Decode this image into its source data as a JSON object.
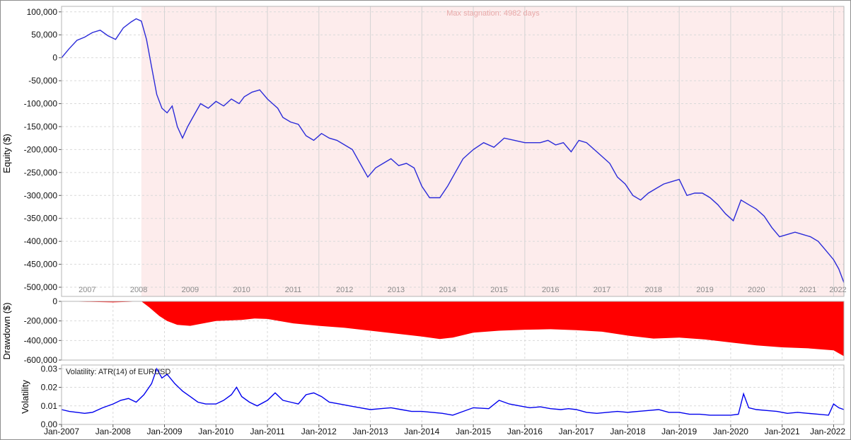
{
  "colors": {
    "equity_line": "#2b2bd9",
    "volatility_line": "#0000ee",
    "drawdown_fill": "#ff0000",
    "stagnation_shade": "#fdecec",
    "stagnation_text": "#e8a8a8",
    "year_label": "#8a8a8a",
    "grid": "#d9d9d9",
    "frame": "#b5b5b5"
  },
  "chart_data": [
    {
      "type": "line",
      "ylabel": "Equity ($)",
      "ylim": [
        -520000,
        112000
      ],
      "yticks": [
        100000,
        50000,
        0,
        -50000,
        -100000,
        -150000,
        -200000,
        -250000,
        -300000,
        -350000,
        -400000,
        -450000,
        -500000
      ],
      "ytick_labels": [
        "100,000",
        "50,000",
        "0",
        "-50,000",
        "-100,000",
        "-150,000",
        "-200,000",
        "-250,000",
        "-300,000",
        "-350,000",
        "-400,000",
        "-450,000",
        "-500,000"
      ],
      "year_labels": [
        "2007",
        "2008",
        "2009",
        "2010",
        "2011",
        "2012",
        "2013",
        "2014",
        "2015",
        "2016",
        "2017",
        "2018",
        "2019",
        "2020",
        "2021",
        "2022"
      ],
      "annotation": "Max stagnation: 4982 days",
      "stagnation_start": 2008.55,
      "x": [
        2007.0,
        2007.15,
        2007.3,
        2007.45,
        2007.6,
        2007.75,
        2007.9,
        2008.05,
        2008.2,
        2008.35,
        2008.45,
        2008.55,
        2008.65,
        2008.75,
        2008.85,
        2008.95,
        2009.05,
        2009.15,
        2009.25,
        2009.35,
        2009.45,
        2009.55,
        2009.7,
        2009.85,
        2010.0,
        2010.15,
        2010.3,
        2010.45,
        2010.55,
        2010.7,
        2010.85,
        2011.0,
        2011.1,
        2011.2,
        2011.3,
        2011.45,
        2011.6,
        2011.75,
        2011.9,
        2012.05,
        2012.2,
        2012.35,
        2012.5,
        2012.65,
        2012.8,
        2012.95,
        2013.1,
        2013.25,
        2013.4,
        2013.55,
        2013.7,
        2013.85,
        2014.0,
        2014.15,
        2014.35,
        2014.5,
        2014.65,
        2014.8,
        2015.0,
        2015.2,
        2015.4,
        2015.6,
        2015.8,
        2016.0,
        2016.15,
        2016.3,
        2016.45,
        2016.6,
        2016.75,
        2016.9,
        2017.05,
        2017.2,
        2017.35,
        2017.5,
        2017.65,
        2017.8,
        2017.95,
        2018.1,
        2018.25,
        2018.4,
        2018.55,
        2018.7,
        2018.85,
        2019.0,
        2019.15,
        2019.3,
        2019.45,
        2019.6,
        2019.75,
        2019.9,
        2020.05,
        2020.2,
        2020.35,
        2020.5,
        2020.65,
        2020.8,
        2020.95,
        2021.1,
        2021.25,
        2021.4,
        2021.55,
        2021.7,
        2021.85,
        2022.0,
        2022.1,
        2022.2
      ],
      "values": [
        0,
        20000,
        38000,
        45000,
        55000,
        60000,
        48000,
        40000,
        65000,
        78000,
        85000,
        80000,
        40000,
        -20000,
        -80000,
        -110000,
        -120000,
        -105000,
        -150000,
        -175000,
        -150000,
        -130000,
        -100000,
        -110000,
        -95000,
        -105000,
        -90000,
        -100000,
        -85000,
        -75000,
        -70000,
        -90000,
        -100000,
        -110000,
        -130000,
        -140000,
        -145000,
        -170000,
        -180000,
        -165000,
        -175000,
        -180000,
        -190000,
        -200000,
        -230000,
        -260000,
        -240000,
        -230000,
        -220000,
        -235000,
        -230000,
        -240000,
        -280000,
        -305000,
        -305000,
        -280000,
        -250000,
        -220000,
        -200000,
        -185000,
        -195000,
        -175000,
        -180000,
        -185000,
        -185000,
        -185000,
        -180000,
        -190000,
        -185000,
        -205000,
        -180000,
        -185000,
        -200000,
        -215000,
        -230000,
        -260000,
        -275000,
        -300000,
        -310000,
        -295000,
        -285000,
        -275000,
        -270000,
        -265000,
        -300000,
        -295000,
        -295000,
        -305000,
        -320000,
        -340000,
        -355000,
        -310000,
        -320000,
        -330000,
        -345000,
        -370000,
        -390000,
        -385000,
        -380000,
        -385000,
        -390000,
        -400000,
        -420000,
        -440000,
        -460000,
        -490000
      ]
    },
    {
      "type": "area",
      "ylabel": "Drawdown ($)",
      "ylim": [
        -600000,
        0
      ],
      "yticks": [
        0,
        -200000,
        -400000,
        -600000
      ],
      "ytick_labels": [
        "0",
        "-200,000",
        "-400,000",
        "-600,000"
      ],
      "x": [
        2007.0,
        2007.5,
        2008.0,
        2008.3,
        2008.55,
        2008.7,
        2008.9,
        2009.05,
        2009.25,
        2009.5,
        2010.0,
        2010.5,
        2010.75,
        2011.0,
        2011.5,
        2012.0,
        2012.5,
        2013.0,
        2013.5,
        2014.0,
        2014.35,
        2014.6,
        2015.0,
        2015.5,
        2016.0,
        2016.5,
        2017.0,
        2017.5,
        2018.0,
        2018.5,
        2019.0,
        2019.5,
        2020.0,
        2020.5,
        2021.0,
        2021.5,
        2022.0,
        2022.2
      ],
      "values": [
        0,
        -5000,
        -10000,
        -5000,
        0,
        -60000,
        -150000,
        -200000,
        -240000,
        -250000,
        -200000,
        -190000,
        -175000,
        -180000,
        -225000,
        -250000,
        -270000,
        -300000,
        -330000,
        -360000,
        -385000,
        -370000,
        -320000,
        -300000,
        -290000,
        -285000,
        -295000,
        -310000,
        -350000,
        -380000,
        -370000,
        -390000,
        -420000,
        -450000,
        -470000,
        -480000,
        -500000,
        -560000
      ]
    },
    {
      "type": "line",
      "title": "Volatility: ATR(14) of EURUSD",
      "ylabel": "Volatility",
      "ylim": [
        0,
        0.032
      ],
      "yticks": [
        0.0,
        0.01,
        0.02,
        0.03
      ],
      "ytick_labels": [
        "0.00",
        "0.01",
        "0.02",
        "0.03"
      ],
      "xtick_labels": [
        "Jan-2007",
        "Jan-2008",
        "Jan-2009",
        "Jan-2010",
        "Jan-2011",
        "Jan-2012",
        "Jan-2013",
        "Jan-2014",
        "Jan-2015",
        "Jan-2016",
        "Jan-2017",
        "Jan-2018",
        "Jan-2019",
        "Jan-2020",
        "Jan-2021",
        "Jan-2022"
      ],
      "x": [
        2007.0,
        2007.15,
        2007.3,
        2007.45,
        2007.6,
        2007.8,
        2008.0,
        2008.15,
        2008.3,
        2008.45,
        2008.6,
        2008.75,
        2008.85,
        2008.95,
        2009.05,
        2009.2,
        2009.35,
        2009.5,
        2009.65,
        2009.8,
        2010.0,
        2010.15,
        2010.3,
        2010.4,
        2010.5,
        2010.65,
        2010.8,
        2011.0,
        2011.15,
        2011.3,
        2011.45,
        2011.6,
        2011.75,
        2011.9,
        2012.05,
        2012.2,
        2012.4,
        2012.6,
        2012.8,
        2013.0,
        2013.2,
        2013.4,
        2013.6,
        2013.8,
        2014.0,
        2014.2,
        2014.4,
        2014.6,
        2014.8,
        2015.0,
        2015.3,
        2015.5,
        2015.7,
        2015.9,
        2016.1,
        2016.3,
        2016.5,
        2016.7,
        2016.85,
        2017.0,
        2017.2,
        2017.4,
        2017.6,
        2017.8,
        2018.0,
        2018.2,
        2018.4,
        2018.6,
        2018.8,
        2019.0,
        2019.2,
        2019.4,
        2019.6,
        2019.8,
        2020.0,
        2020.15,
        2020.25,
        2020.35,
        2020.5,
        2020.7,
        2020.9,
        2021.1,
        2021.3,
        2021.5,
        2021.7,
        2021.9,
        2022.0,
        2022.1,
        2022.2
      ],
      "values": [
        0.008,
        0.007,
        0.0065,
        0.006,
        0.0065,
        0.009,
        0.011,
        0.013,
        0.014,
        0.012,
        0.016,
        0.022,
        0.03,
        0.025,
        0.027,
        0.022,
        0.018,
        0.015,
        0.012,
        0.011,
        0.011,
        0.013,
        0.016,
        0.02,
        0.015,
        0.012,
        0.01,
        0.013,
        0.017,
        0.013,
        0.012,
        0.011,
        0.016,
        0.017,
        0.015,
        0.012,
        0.011,
        0.01,
        0.009,
        0.008,
        0.0085,
        0.009,
        0.008,
        0.007,
        0.007,
        0.0065,
        0.006,
        0.005,
        0.007,
        0.009,
        0.0085,
        0.013,
        0.011,
        0.01,
        0.009,
        0.0095,
        0.0085,
        0.008,
        0.0085,
        0.008,
        0.0065,
        0.006,
        0.0065,
        0.007,
        0.0065,
        0.007,
        0.0075,
        0.008,
        0.0065,
        0.0065,
        0.0055,
        0.0055,
        0.005,
        0.005,
        0.005,
        0.0055,
        0.0165,
        0.009,
        0.008,
        0.0075,
        0.007,
        0.006,
        0.0065,
        0.006,
        0.0055,
        0.005,
        0.011,
        0.009,
        0.008
      ]
    }
  ]
}
